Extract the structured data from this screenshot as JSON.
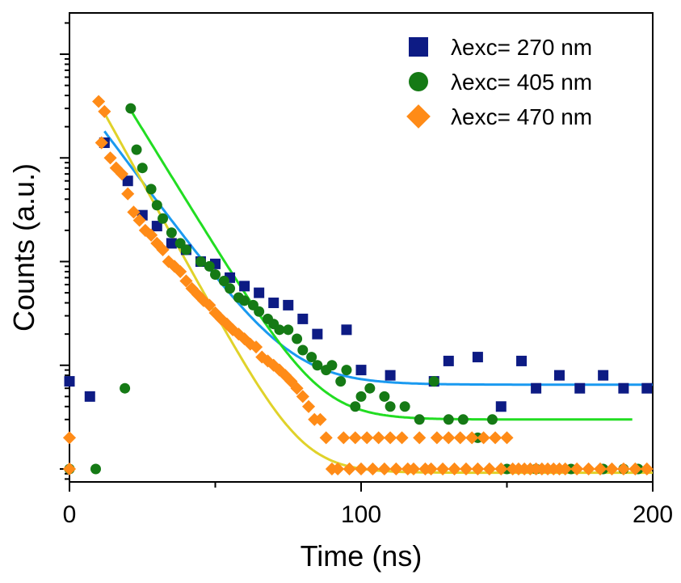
{
  "chart_data": {
    "type": "scatter",
    "title": "",
    "xlabel": "Time (ns)",
    "ylabel": "Counts (a.u.)",
    "xlim": [
      0,
      200
    ],
    "y_scale": "log",
    "ylim": [
      0.75,
      25000
    ],
    "x_tick_labels": [
      "0",
      "100",
      "200"
    ],
    "y_tick_labels_shown": false,
    "grid": false,
    "legend_position": "top-right",
    "series": [
      {
        "name": "λexc= 270 nm",
        "marker": "square",
        "color": "#0d1b84",
        "points": [
          [
            0,
            7
          ],
          [
            7,
            5
          ],
          [
            12,
            1400
          ],
          [
            20,
            600
          ],
          [
            25,
            280
          ],
          [
            30,
            220
          ],
          [
            35,
            150
          ],
          [
            40,
            130
          ],
          [
            45,
            100
          ],
          [
            50,
            95
          ],
          [
            55,
            70
          ],
          [
            60,
            58
          ],
          [
            65,
            50
          ],
          [
            70,
            40
          ],
          [
            75,
            38
          ],
          [
            80,
            28
          ],
          [
            85,
            20
          ],
          [
            95,
            22
          ],
          [
            100,
            9
          ],
          [
            110,
            8
          ],
          [
            125,
            7
          ],
          [
            130,
            11
          ],
          [
            140,
            12
          ],
          [
            148,
            4
          ],
          [
            155,
            11
          ],
          [
            160,
            6
          ],
          [
            168,
            8
          ],
          [
            175,
            6
          ],
          [
            183,
            8
          ],
          [
            190,
            6
          ],
          [
            198,
            6
          ]
        ]
      },
      {
        "name": "λexc= 405 nm",
        "marker": "circle",
        "color": "#157a15",
        "points": [
          [
            0,
            1
          ],
          [
            9,
            1
          ],
          [
            19,
            6
          ],
          [
            21,
            3000
          ],
          [
            23,
            1200
          ],
          [
            25,
            800
          ],
          [
            28,
            500
          ],
          [
            30,
            350
          ],
          [
            32,
            260
          ],
          [
            35,
            190
          ],
          [
            38,
            150
          ],
          [
            40,
            130
          ],
          [
            45,
            100
          ],
          [
            48,
            90
          ],
          [
            50,
            75
          ],
          [
            53,
            65
          ],
          [
            55,
            55
          ],
          [
            58,
            45
          ],
          [
            60,
            42
          ],
          [
            63,
            38
          ],
          [
            65,
            33
          ],
          [
            68,
            28
          ],
          [
            70,
            25
          ],
          [
            72,
            22
          ],
          [
            75,
            22
          ],
          [
            78,
            18
          ],
          [
            80,
            14
          ],
          [
            83,
            12
          ],
          [
            85,
            10
          ],
          [
            88,
            9
          ],
          [
            90,
            10
          ],
          [
            93,
            7
          ],
          [
            95,
            9
          ],
          [
            98,
            4
          ],
          [
            100,
            5
          ],
          [
            103,
            6
          ],
          [
            108,
            5
          ],
          [
            110,
            4
          ],
          [
            115,
            4
          ],
          [
            120,
            3
          ],
          [
            125,
            7
          ],
          [
            130,
            3
          ],
          [
            135,
            3
          ],
          [
            140,
            2
          ],
          [
            145,
            3
          ],
          [
            150,
            1
          ],
          [
            160,
            1
          ],
          [
            172,
            1
          ],
          [
            183,
            1
          ],
          [
            190,
            1
          ],
          [
            195,
            1
          ]
        ]
      },
      {
        "name": "λexc= 470 nm",
        "marker": "diamond",
        "color": "#ff8b17",
        "points": [
          [
            0,
            1
          ],
          [
            0,
            2
          ],
          [
            10,
            3500
          ],
          [
            12,
            2800
          ],
          [
            11,
            1400
          ],
          [
            14,
            1000
          ],
          [
            16,
            800
          ],
          [
            18,
            700
          ],
          [
            20,
            450
          ],
          [
            22,
            300
          ],
          [
            24,
            250
          ],
          [
            26,
            200
          ],
          [
            28,
            180
          ],
          [
            30,
            150
          ],
          [
            32,
            130
          ],
          [
            34,
            100
          ],
          [
            36,
            90
          ],
          [
            38,
            80
          ],
          [
            40,
            65
          ],
          [
            42,
            55
          ],
          [
            44,
            48
          ],
          [
            46,
            42
          ],
          [
            48,
            38
          ],
          [
            50,
            32
          ],
          [
            52,
            28
          ],
          [
            54,
            25
          ],
          [
            56,
            22
          ],
          [
            58,
            20
          ],
          [
            60,
            18
          ],
          [
            62,
            16
          ],
          [
            64,
            15
          ],
          [
            66,
            12
          ],
          [
            68,
            11
          ],
          [
            70,
            10
          ],
          [
            72,
            9
          ],
          [
            74,
            8
          ],
          [
            76,
            7
          ],
          [
            78,
            6
          ],
          [
            80,
            5
          ],
          [
            82,
            4
          ],
          [
            84,
            3
          ],
          [
            86,
            3
          ],
          [
            88,
            2
          ],
          [
            90,
            1
          ],
          [
            92,
            1
          ],
          [
            94,
            2
          ],
          [
            96,
            1
          ],
          [
            98,
            2
          ],
          [
            100,
            1
          ],
          [
            102,
            2
          ],
          [
            104,
            1
          ],
          [
            106,
            2
          ],
          [
            108,
            1
          ],
          [
            110,
            2
          ],
          [
            112,
            1
          ],
          [
            114,
            2
          ],
          [
            116,
            1
          ],
          [
            118,
            1
          ],
          [
            120,
            2
          ],
          [
            122,
            1
          ],
          [
            124,
            1
          ],
          [
            126,
            2
          ],
          [
            128,
            1
          ],
          [
            130,
            2
          ],
          [
            132,
            1
          ],
          [
            134,
            2
          ],
          [
            136,
            1
          ],
          [
            138,
            2
          ],
          [
            140,
            1
          ],
          [
            142,
            2
          ],
          [
            144,
            1
          ],
          [
            146,
            2
          ],
          [
            148,
            1
          ],
          [
            150,
            2
          ],
          [
            152,
            1
          ],
          [
            154,
            1
          ],
          [
            156,
            1
          ],
          [
            158,
            1
          ],
          [
            160,
            1
          ],
          [
            162,
            1
          ],
          [
            164,
            1
          ],
          [
            166,
            1
          ],
          [
            168,
            1
          ],
          [
            170,
            1
          ],
          [
            174,
            1
          ],
          [
            178,
            1
          ],
          [
            182,
            1
          ],
          [
            186,
            1
          ],
          [
            190,
            1
          ],
          [
            194,
            1
          ],
          [
            198,
            1
          ]
        ]
      }
    ],
    "fits": [
      {
        "series": "λexc= 270 nm",
        "color": "#1a9af0",
        "y0": 6.5,
        "A": 1800,
        "tau": 11.5,
        "x_start": 12,
        "x_end": 200
      },
      {
        "series": "λexc= 405 nm",
        "color": "#22dd22",
        "y0": 3.0,
        "A": 3200,
        "tau": 9.5,
        "x_start": 20,
        "x_end": 193
      },
      {
        "series": "λexc= 470 nm",
        "color": "#e0d22a",
        "y0": 0.92,
        "A": 2700,
        "tau": 8.5,
        "x_start": 12,
        "x_end": 200
      }
    ]
  }
}
